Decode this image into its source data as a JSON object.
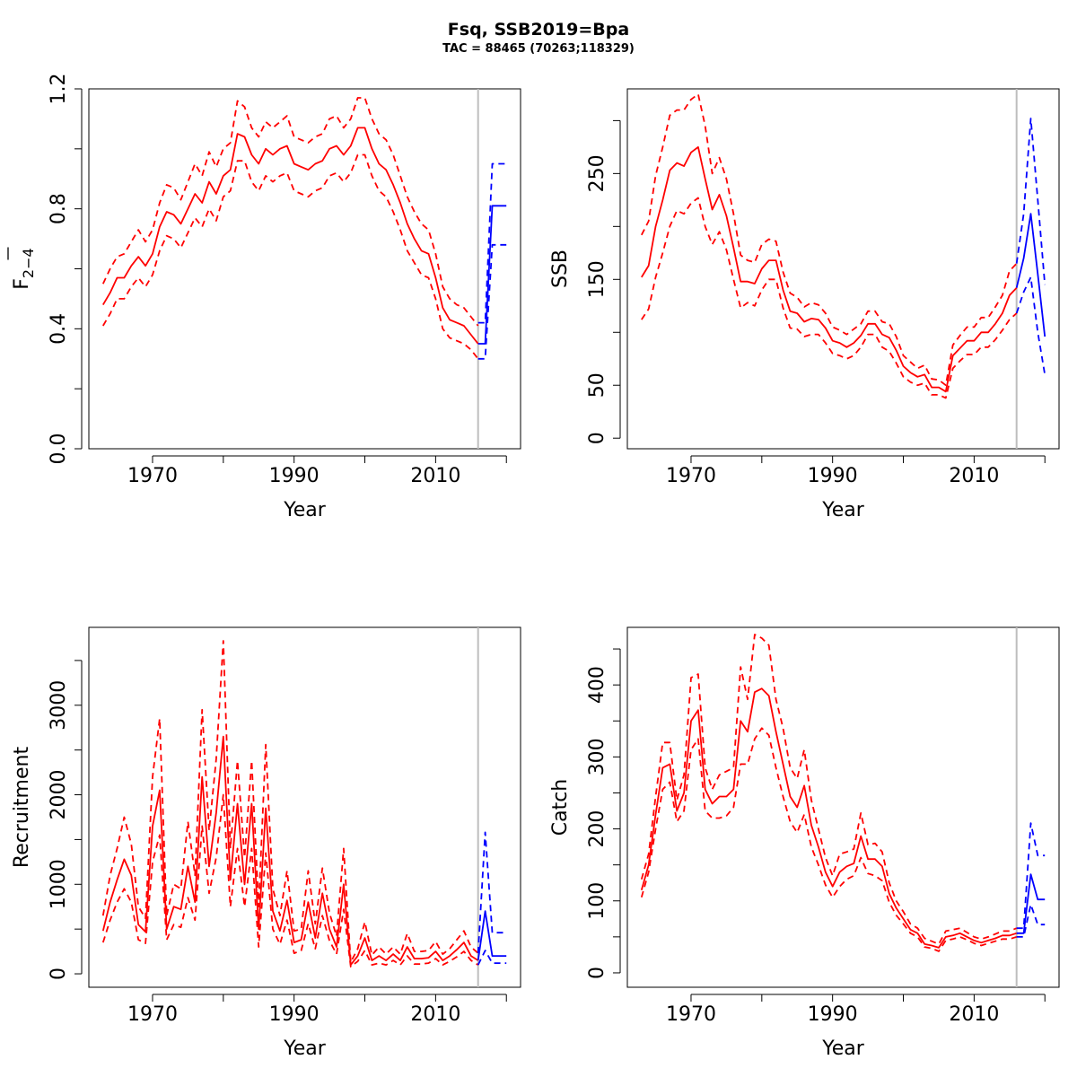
{
  "header": {
    "title": "Fsq, SSB2019=Bpa",
    "subtitle": "TAC = 88465 (70263;118329)"
  },
  "colors": {
    "history": "#ff0000",
    "forecast": "#0000ff",
    "divider": "#bebebe"
  },
  "chart_data": [
    {
      "type": "line",
      "id": "f",
      "ylabel_main": "F",
      "ylabel_sub": "2−4",
      "xlabel": "Year",
      "xlim": [
        1961,
        2022
      ],
      "ylim": [
        0,
        1.2
      ],
      "xticks": [
        1970,
        1990,
        2010
      ],
      "xticks_minor": [
        1980,
        2000,
        2020
      ],
      "yticks": [
        "0.0",
        "0.4",
        "0.8",
        "1.2"
      ],
      "yticks_minor": [
        0.2,
        0.6,
        1.0
      ],
      "divider_year": 2016,
      "history": {
        "x": [
          1963,
          1964,
          1965,
          1966,
          1967,
          1968,
          1969,
          1970,
          1971,
          1972,
          1973,
          1974,
          1975,
          1976,
          1977,
          1978,
          1979,
          1980,
          1981,
          1982,
          1983,
          1984,
          1985,
          1986,
          1987,
          1988,
          1989,
          1990,
          1991,
          1992,
          1993,
          1994,
          1995,
          1996,
          1997,
          1998,
          1999,
          2000,
          2001,
          2002,
          2003,
          2004,
          2005,
          2006,
          2007,
          2008,
          2009,
          2010,
          2011,
          2012,
          2013,
          2014,
          2015,
          2016
        ],
        "mid": [
          0.48,
          0.52,
          0.57,
          0.57,
          0.61,
          0.64,
          0.61,
          0.65,
          0.74,
          0.79,
          0.78,
          0.75,
          0.8,
          0.85,
          0.82,
          0.89,
          0.85,
          0.91,
          0.93,
          1.05,
          1.04,
          0.98,
          0.95,
          1.0,
          0.98,
          1.0,
          1.01,
          0.95,
          0.94,
          0.93,
          0.95,
          0.96,
          1.0,
          1.01,
          0.98,
          1.01,
          1.07,
          1.07,
          1.0,
          0.95,
          0.93,
          0.88,
          0.82,
          0.75,
          0.7,
          0.66,
          0.65,
          0.57,
          0.47,
          0.43,
          0.42,
          0.41,
          0.38,
          0.35
        ],
        "lo": [
          0.41,
          0.45,
          0.5,
          0.5,
          0.54,
          0.57,
          0.54,
          0.58,
          0.66,
          0.71,
          0.7,
          0.67,
          0.72,
          0.77,
          0.74,
          0.8,
          0.76,
          0.84,
          0.86,
          0.96,
          0.96,
          0.89,
          0.86,
          0.91,
          0.89,
          0.91,
          0.92,
          0.86,
          0.85,
          0.84,
          0.86,
          0.87,
          0.91,
          0.92,
          0.89,
          0.92,
          0.98,
          0.98,
          0.91,
          0.86,
          0.84,
          0.79,
          0.73,
          0.66,
          0.62,
          0.58,
          0.57,
          0.5,
          0.4,
          0.37,
          0.36,
          0.35,
          0.33,
          0.3
        ],
        "hi": [
          0.55,
          0.6,
          0.64,
          0.65,
          0.69,
          0.73,
          0.69,
          0.73,
          0.82,
          0.88,
          0.87,
          0.83,
          0.89,
          0.95,
          0.91,
          0.99,
          0.94,
          1.0,
          1.02,
          1.16,
          1.14,
          1.07,
          1.04,
          1.09,
          1.07,
          1.09,
          1.11,
          1.04,
          1.03,
          1.02,
          1.04,
          1.05,
          1.1,
          1.11,
          1.07,
          1.1,
          1.17,
          1.17,
          1.1,
          1.05,
          1.03,
          0.98,
          0.91,
          0.84,
          0.79,
          0.75,
          0.73,
          0.65,
          0.54,
          0.5,
          0.48,
          0.47,
          0.44,
          0.41
        ]
      },
      "forecast": {
        "x": [
          2016,
          2017,
          2018,
          2019,
          2020
        ],
        "mid": [
          0.35,
          0.35,
          0.81,
          0.81,
          0.81
        ],
        "lo": [
          0.3,
          0.3,
          0.68,
          0.68,
          0.68
        ],
        "hi": [
          0.42,
          0.42,
          0.95,
          0.95,
          0.95
        ]
      }
    },
    {
      "type": "line",
      "id": "ssb",
      "ylabel": "SSB",
      "xlabel": "Year",
      "xlim": [
        1961,
        2022
      ],
      "ylim": [
        -10,
        330
      ],
      "xticks": [
        1970,
        1990,
        2010
      ],
      "xticks_minor": [
        1980,
        2000,
        2020
      ],
      "yticks": [
        "0",
        "50",
        "150",
        "250"
      ],
      "yticks_minor": [
        100,
        200,
        300
      ],
      "divider_year": 2016,
      "history": {
        "x": [
          1963,
          1964,
          1965,
          1966,
          1967,
          1968,
          1969,
          1970,
          1971,
          1972,
          1973,
          1974,
          1975,
          1976,
          1977,
          1978,
          1979,
          1980,
          1981,
          1982,
          1983,
          1984,
          1985,
          1986,
          1987,
          1988,
          1989,
          1990,
          1991,
          1992,
          1993,
          1994,
          1995,
          1996,
          1997,
          1998,
          1999,
          2000,
          2001,
          2002,
          2003,
          2004,
          2005,
          2006,
          2007,
          2008,
          2009,
          2010,
          2011,
          2012,
          2013,
          2014,
          2015,
          2016
        ],
        "mid": [
          152,
          163,
          200,
          225,
          253,
          260,
          257,
          270,
          275,
          245,
          216,
          230,
          210,
          180,
          148,
          148,
          146,
          160,
          168,
          168,
          140,
          120,
          118,
          110,
          113,
          112,
          104,
          92,
          90,
          86,
          90,
          97,
          108,
          108,
          98,
          95,
          83,
          68,
          62,
          58,
          60,
          48,
          48,
          44,
          78,
          85,
          92,
          92,
          100,
          100,
          108,
          118,
          135,
          142
        ],
        "lo": [
          112,
          122,
          152,
          175,
          200,
          215,
          212,
          222,
          227,
          200,
          183,
          195,
          178,
          150,
          123,
          128,
          125,
          140,
          150,
          150,
          123,
          104,
          103,
          96,
          98,
          98,
          90,
          80,
          78,
          75,
          78,
          86,
          98,
          98,
          86,
          82,
          71,
          58,
          53,
          50,
          52,
          41,
          41,
          38,
          66,
          73,
          79,
          79,
          86,
          86,
          93,
          102,
          112,
          118
        ],
        "hi": [
          192,
          205,
          248,
          275,
          305,
          310,
          310,
          320,
          325,
          295,
          250,
          265,
          245,
          212,
          173,
          168,
          166,
          183,
          188,
          186,
          157,
          137,
          133,
          124,
          128,
          126,
          118,
          105,
          102,
          98,
          103,
          108,
          120,
          120,
          110,
          108,
          96,
          78,
          72,
          66,
          69,
          56,
          55,
          50,
          88,
          97,
          105,
          105,
          114,
          114,
          124,
          135,
          158,
          165
        ]
      },
      "forecast": {
        "x": [
          2016,
          2017,
          2018,
          2019,
          2020
        ],
        "mid": [
          142,
          170,
          212,
          155,
          96
        ],
        "lo": [
          118,
          138,
          152,
          100,
          60
        ],
        "hi": [
          165,
          212,
          302,
          225,
          145
        ]
      }
    },
    {
      "type": "line",
      "id": "recruitment",
      "ylabel": "Recruitment",
      "xlabel": "Year",
      "xlim": [
        1961,
        2022
      ],
      "ylim": [
        -150,
        3870
      ],
      "xticks": [
        1970,
        1990,
        2010
      ],
      "xticks_minor": [
        1980,
        2000,
        2020
      ],
      "yticks": [
        "0",
        "1000",
        "2000",
        "3000"
      ],
      "yticks_minor": [
        500,
        1500,
        2500,
        3500
      ],
      "divider_year": 2016,
      "history": {
        "x": [
          1963,
          1964,
          1965,
          1966,
          1967,
          1968,
          1969,
          1970,
          1971,
          1972,
          1973,
          1974,
          1975,
          1976,
          1977,
          1978,
          1979,
          1980,
          1981,
          1982,
          1983,
          1984,
          1985,
          1986,
          1987,
          1988,
          1989,
          1990,
          1991,
          1992,
          1993,
          1994,
          1995,
          1996,
          1997,
          1998,
          1999,
          2000,
          2001,
          2002,
          2003,
          2004,
          2005,
          2006,
          2007,
          2008,
          2009,
          2010,
          2011,
          2012,
          2013,
          2014,
          2015,
          2016
        ],
        "mid": [
          480,
          800,
          1050,
          1280,
          1100,
          550,
          470,
          1650,
          2050,
          500,
          750,
          720,
          1200,
          800,
          2200,
          1200,
          1800,
          2650,
          1050,
          1900,
          1000,
          1900,
          500,
          1850,
          700,
          480,
          820,
          350,
          380,
          800,
          400,
          900,
          500,
          300,
          1000,
          100,
          200,
          400,
          150,
          200,
          150,
          220,
          150,
          300,
          170,
          170,
          180,
          250,
          150,
          200,
          270,
          350,
          200,
          150
        ],
        "lo": [
          350,
          600,
          800,
          950,
          800,
          380,
          340,
          1250,
          1550,
          380,
          550,
          520,
          850,
          600,
          1650,
          900,
          1300,
          2000,
          750,
          1400,
          750,
          1400,
          300,
          1350,
          500,
          330,
          600,
          230,
          260,
          560,
          280,
          650,
          370,
          220,
          720,
          80,
          140,
          260,
          100,
          120,
          100,
          150,
          100,
          200,
          110,
          110,
          120,
          170,
          100,
          140,
          190,
          250,
          150,
          100
        ],
        "hi": [
          650,
          1100,
          1400,
          1750,
          1450,
          750,
          620,
          2200,
          2850,
          650,
          1000,
          950,
          1700,
          1100,
          2950,
          1600,
          2400,
          3720,
          1400,
          2380,
          1300,
          2380,
          750,
          2560,
          950,
          650,
          1150,
          480,
          500,
          1150,
          560,
          1180,
          680,
          420,
          1400,
          130,
          280,
          580,
          210,
          300,
          220,
          300,
          220,
          450,
          250,
          250,
          260,
          360,
          220,
          280,
          380,
          480,
          300,
          230
        ]
      },
      "forecast": {
        "x": [
          2016,
          2017,
          2018,
          2019,
          2020
        ],
        "mid": [
          150,
          700,
          200,
          200,
          200
        ],
        "lo": [
          100,
          260,
          120,
          120,
          120
        ],
        "hi": [
          230,
          1580,
          460,
          460,
          460
        ]
      }
    },
    {
      "type": "line",
      "id": "catch",
      "ylabel": "Catch",
      "xlabel": "Year",
      "xlim": [
        1961,
        2022
      ],
      "ylim": [
        -20,
        480
      ],
      "xticks": [
        1970,
        1990,
        2010
      ],
      "xticks_minor": [
        1980,
        2000,
        2020
      ],
      "yticks": [
        "0",
        "100",
        "200",
        "300",
        "400"
      ],
      "yticks_minor": [
        50,
        150,
        250,
        350,
        450
      ],
      "divider_year": 2016,
      "history": {
        "x": [
          1963,
          1964,
          1965,
          1966,
          1967,
          1968,
          1969,
          1970,
          1971,
          1972,
          1973,
          1974,
          1975,
          1976,
          1977,
          1978,
          1979,
          1980,
          1981,
          1982,
          1983,
          1984,
          1985,
          1986,
          1987,
          1988,
          1989,
          1990,
          1991,
          1992,
          1993,
          1994,
          1995,
          1996,
          1997,
          1998,
          1999,
          2000,
          2001,
          2002,
          2003,
          2004,
          2005,
          2006,
          2007,
          2008,
          2009,
          2010,
          2011,
          2012,
          2013,
          2014,
          2015,
          2016
        ],
        "mid": [
          115,
          150,
          220,
          285,
          290,
          225,
          250,
          350,
          365,
          255,
          235,
          245,
          245,
          255,
          350,
          335,
          390,
          395,
          385,
          335,
          290,
          245,
          230,
          260,
          205,
          175,
          140,
          120,
          140,
          148,
          152,
          190,
          158,
          158,
          148,
          110,
          90,
          75,
          60,
          55,
          40,
          38,
          35,
          50,
          52,
          55,
          50,
          45,
          42,
          45,
          48,
          52,
          52,
          55
        ],
        "lo": [
          105,
          140,
          200,
          255,
          265,
          210,
          225,
          310,
          325,
          225,
          215,
          215,
          218,
          230,
          290,
          290,
          325,
          340,
          330,
          285,
          245,
          210,
          195,
          220,
          175,
          150,
          122,
          105,
          120,
          130,
          135,
          160,
          138,
          135,
          128,
          98,
          80,
          68,
          55,
          50,
          36,
          34,
          30,
          45,
          47,
          50,
          46,
          41,
          38,
          41,
          44,
          47,
          47,
          50
        ],
        "hi": [
          130,
          165,
          245,
          320,
          320,
          240,
          275,
          410,
          415,
          285,
          255,
          275,
          280,
          285,
          425,
          380,
          470,
          465,
          455,
          380,
          340,
          285,
          270,
          310,
          240,
          200,
          160,
          135,
          165,
          168,
          172,
          222,
          178,
          180,
          168,
          125,
          100,
          85,
          68,
          62,
          48,
          44,
          40,
          58,
          60,
          62,
          56,
          50,
          47,
          50,
          54,
          58,
          58,
          62
        ]
      },
      "forecast": {
        "x": [
          2016,
          2017,
          2018,
          2019,
          2020
        ],
        "mid": [
          55,
          55,
          137,
          102,
          102
        ],
        "lo": [
          50,
          50,
          95,
          67,
          67
        ],
        "hi": [
          62,
          62,
          208,
          163,
          163
        ]
      }
    }
  ]
}
